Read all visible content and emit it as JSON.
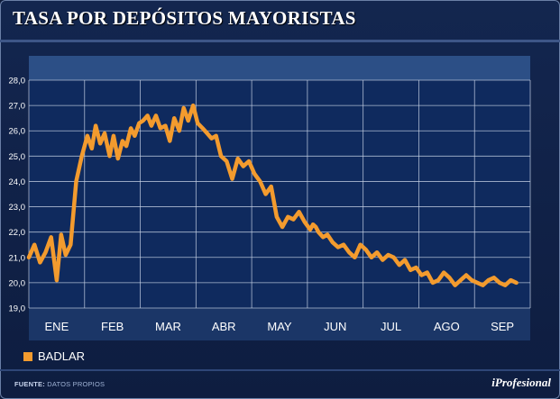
{
  "header": {
    "title": "TASA POR DEPÓSITOS MAYORISTAS"
  },
  "legend": {
    "label": "BADLAR"
  },
  "footer": {
    "source_label": "FUENTE:",
    "source_value": "DATOS PROPIOS",
    "brand": "iProfesional"
  },
  "colors": {
    "line": "#f39b2e",
    "plot_bg": "#0f2a5e",
    "band": "#2c4f86",
    "grid": "#c8d3e6"
  },
  "chart_data": {
    "type": "line",
    "title": "TASA POR DEPÓSITOS MAYORISTAS",
    "xlabel": "",
    "ylabel": "",
    "x_tick_labels": [
      "ENE",
      "FEB",
      "MAR",
      "ABR",
      "MAY",
      "JUN",
      "JUL",
      "AGO",
      "SEP"
    ],
    "y_tick_labels": [
      "28,0",
      "27,0",
      "26,0",
      "25,0",
      "24,0",
      "23,0",
      "22,0",
      "21,0",
      "20,0",
      "19,0"
    ],
    "ylim": [
      19,
      28
    ],
    "xlim": [
      0,
      9
    ],
    "grid": true,
    "legend_position": "bottom-left",
    "series": [
      {
        "name": "BADLAR",
        "x": [
          0.0,
          0.1,
          0.2,
          0.3,
          0.4,
          0.5,
          0.58,
          0.66,
          0.75,
          0.85,
          0.95,
          1.05,
          1.13,
          1.2,
          1.28,
          1.36,
          1.45,
          1.52,
          1.6,
          1.68,
          1.75,
          1.83,
          1.9,
          1.98,
          2.05,
          2.13,
          2.2,
          2.28,
          2.36,
          2.45,
          2.53,
          2.61,
          2.7,
          2.78,
          2.86,
          2.95,
          3.03,
          3.12,
          3.2,
          3.28,
          3.36,
          3.45,
          3.55,
          3.65,
          3.75,
          3.85,
          3.95,
          4.05,
          4.15,
          4.25,
          4.35,
          4.45,
          4.55,
          4.65,
          4.75,
          4.85,
          4.95,
          5.05,
          5.1,
          5.15,
          5.2,
          5.28,
          5.36,
          5.45,
          5.55,
          5.65,
          5.75,
          5.85,
          5.95,
          6.05,
          6.15,
          6.25,
          6.35,
          6.45,
          6.55,
          6.65,
          6.75,
          6.85,
          6.95,
          7.05,
          7.15,
          7.25,
          7.35,
          7.45,
          7.55,
          7.65,
          7.75,
          7.85,
          7.95,
          8.05,
          8.15,
          8.25,
          8.35,
          8.45,
          8.55,
          8.65,
          8.75
        ],
        "y": [
          21.0,
          21.5,
          20.8,
          21.2,
          21.8,
          20.1,
          21.9,
          21.1,
          21.5,
          24.0,
          25.0,
          25.8,
          25.3,
          26.2,
          25.5,
          25.9,
          25.0,
          25.8,
          24.9,
          25.6,
          25.4,
          26.1,
          25.8,
          26.3,
          26.4,
          26.6,
          26.2,
          26.6,
          26.1,
          26.2,
          25.6,
          26.5,
          26.0,
          26.9,
          26.4,
          27.0,
          26.3,
          26.1,
          25.9,
          25.7,
          25.8,
          25.0,
          24.8,
          24.1,
          24.9,
          24.6,
          24.8,
          24.3,
          24.0,
          23.5,
          23.8,
          22.6,
          22.2,
          22.6,
          22.5,
          22.8,
          22.4,
          22.1,
          22.3,
          22.2,
          22.0,
          21.8,
          21.9,
          21.6,
          21.4,
          21.5,
          21.2,
          21.0,
          21.5,
          21.3,
          21.0,
          21.2,
          20.9,
          21.1,
          21.0,
          20.7,
          20.9,
          20.5,
          20.6,
          20.3,
          20.4,
          20.0,
          20.1,
          20.4,
          20.2,
          19.9,
          20.1,
          20.3,
          20.1,
          20.0,
          19.9,
          20.1,
          20.2,
          20.0,
          19.9,
          20.1,
          20.0
        ]
      }
    ]
  }
}
